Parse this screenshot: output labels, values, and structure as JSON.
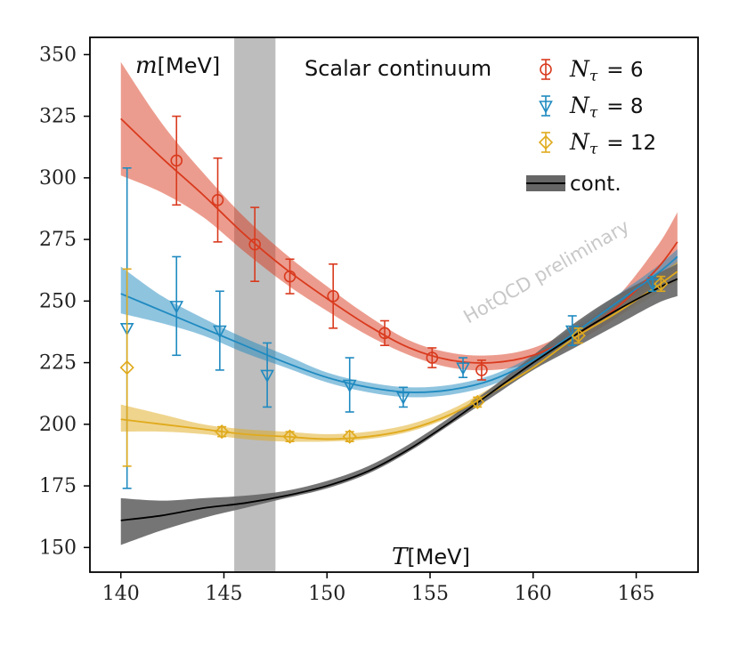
{
  "chart_data": {
    "type": "line",
    "title": "Scalar continuum",
    "xlabel_symbol": "T",
    "xlabel_unit": "[MeV]",
    "ylabel_symbol": "m",
    "ylabel_unit": "[MeV]",
    "xlim": [
      138.5,
      168
    ],
    "ylim": [
      140,
      357
    ],
    "xticks": [
      140,
      145,
      150,
      155,
      160,
      165
    ],
    "yticks": [
      150,
      175,
      200,
      225,
      250,
      275,
      300,
      325,
      350
    ],
    "watermark": "HotQCD preliminary",
    "vband": {
      "x0": 145.5,
      "x1": 147.5,
      "color": "#bdbdbd"
    },
    "series": [
      {
        "name": "N_τ = 6",
        "legend_math": "N",
        "legend_sub": "τ",
        "legend_value": "= 6",
        "color": "#d93a1e",
        "marker": "circle",
        "points": [
          {
            "x": 142.7,
            "y": 307,
            "err": 18
          },
          {
            "x": 144.7,
            "y": 291,
            "err": 17
          },
          {
            "x": 146.5,
            "y": 273,
            "err": 15
          },
          {
            "x": 148.2,
            "y": 260,
            "err": 7
          },
          {
            "x": 150.3,
            "y": 252,
            "err": 13
          },
          {
            "x": 152.8,
            "y": 237,
            "err": 5
          },
          {
            "x": 155.1,
            "y": 227,
            "err": 4
          },
          {
            "x": 157.5,
            "y": 222,
            "err": 4
          }
        ],
        "fit": {
          "x": [
            140,
            142,
            144,
            146,
            148,
            150,
            152,
            154,
            156,
            158,
            160,
            162,
            164,
            166,
            167
          ],
          "y": [
            324,
            308,
            293,
            277,
            263,
            251,
            240,
            231,
            226,
            225,
            228,
            236,
            247,
            263,
            274
          ],
          "lo": [
            301,
            294,
            284,
            270,
            257,
            246,
            236,
            228,
            223,
            222,
            225,
            233,
            243,
            256,
            262
          ],
          "hi": [
            347,
            322,
            302,
            284,
            269,
            256,
            244,
            234,
            229,
            228,
            231,
            239,
            251,
            272,
            286
          ]
        }
      },
      {
        "name": "N_τ = 8",
        "legend_math": "N",
        "legend_sub": "τ",
        "legend_value": "= 8",
        "color": "#1f8ac0",
        "marker": "triangle-down",
        "points": [
          {
            "x": 140.3,
            "y": 239,
            "err": 65
          },
          {
            "x": 142.7,
            "y": 248,
            "err": 20
          },
          {
            "x": 144.8,
            "y": 238,
            "err": 16
          },
          {
            "x": 147.1,
            "y": 220,
            "err": 13
          },
          {
            "x": 151.1,
            "y": 216,
            "err": 11
          },
          {
            "x": 153.7,
            "y": 211,
            "err": 4
          },
          {
            "x": 156.6,
            "y": 223,
            "err": 4
          },
          {
            "x": 161.9,
            "y": 238,
            "err": 6
          },
          {
            "x": 165.8,
            "y": 257,
            "err": 3
          }
        ],
        "fit": {
          "x": [
            140,
            142,
            144,
            146,
            148,
            150,
            152,
            154,
            156,
            158,
            160,
            162,
            164,
            166,
            167
          ],
          "y": [
            253,
            246,
            239,
            232,
            225,
            219,
            215,
            213,
            214,
            218,
            226,
            237,
            249,
            261,
            268
          ],
          "lo": [
            245,
            241,
            236,
            229,
            223,
            217,
            213,
            211,
            212,
            216,
            224,
            235,
            247,
            258,
            264
          ],
          "hi": [
            264,
            252,
            243,
            235,
            228,
            221,
            217,
            215,
            216,
            220,
            228,
            240,
            252,
            264,
            271
          ]
        }
      },
      {
        "name": "N_τ = 12",
        "legend_math": "N",
        "legend_sub": "τ",
        "legend_value": "= 12",
        "color": "#e0aa1c",
        "marker": "diamond",
        "points": [
          {
            "x": 140.3,
            "y": 223,
            "err": 40
          },
          {
            "x": 144.9,
            "y": 197,
            "err": 2
          },
          {
            "x": 148.2,
            "y": 195,
            "err": 2
          },
          {
            "x": 151.1,
            "y": 195,
            "err": 2
          },
          {
            "x": 157.3,
            "y": 209,
            "err": 2
          },
          {
            "x": 162.2,
            "y": 236,
            "err": 3
          },
          {
            "x": 166.2,
            "y": 257,
            "err": 3
          }
        ],
        "fit": {
          "x": [
            140,
            142,
            144,
            146,
            148,
            150,
            152,
            154,
            156,
            158,
            160,
            162,
            164,
            166,
            167
          ],
          "y": [
            202,
            200,
            198,
            196,
            195,
            194,
            195,
            198,
            204,
            213,
            223,
            235,
            245,
            256,
            262
          ],
          "lo": [
            197,
            197,
            196,
            194,
            193,
            193,
            194,
            197,
            203,
            212,
            222,
            233,
            243,
            253,
            258
          ],
          "hi": [
            208,
            204,
            200,
            198,
            197,
            196,
            197,
            200,
            206,
            215,
            225,
            237,
            248,
            260,
            266
          ]
        }
      },
      {
        "name": "cont.",
        "legend_label": "cont.",
        "color": "#000000",
        "band_color": "#666666",
        "marker": "none",
        "points": [],
        "fit": {
          "x": [
            140,
            142,
            144,
            146,
            148,
            150,
            152,
            154,
            156,
            158,
            160,
            162,
            164,
            166,
            167
          ],
          "y": [
            161,
            163,
            166,
            168,
            171,
            175,
            181,
            190,
            201,
            213,
            225,
            236,
            246,
            255,
            259
          ],
          "lo": [
            151,
            157,
            162,
            166,
            170,
            174,
            180,
            189,
            200,
            211,
            222,
            231,
            240,
            249,
            252
          ],
          "hi": [
            170,
            169,
            170,
            171,
            173,
            177,
            183,
            192,
            203,
            215,
            228,
            241,
            252,
            261,
            265
          ]
        }
      }
    ]
  }
}
